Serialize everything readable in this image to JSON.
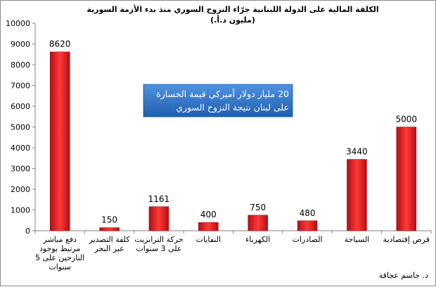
{
  "chart_data": {
    "type": "bar",
    "title": "الكلفة المالية على الدولة اللبنانية جرّاء النزوح السوري منذ بدء الأزمة السورية",
    "subtitle": "(مليون د.أ.)",
    "categories": [
      [
        "دفع مباشر",
        "مرتبط بوجود",
        "النازحين على 5",
        "سنوات"
      ],
      [
        "كلفة التصدير",
        "عبر البحر"
      ],
      [
        "حركة الترانزيت",
        "على 3 سنوات"
      ],
      [
        "النفايات"
      ],
      [
        "الكهرباء"
      ],
      [
        "الصادرات"
      ],
      [
        "السياحة"
      ],
      [
        "فرص إقتصادية"
      ]
    ],
    "values": [
      8620,
      150,
      1161,
      400,
      750,
      480,
      3440,
      5000
    ],
    "data_labels": [
      "8620",
      "150",
      "1161",
      "400",
      "750",
      "480",
      "3440",
      "5000"
    ],
    "yticks": [
      "0",
      "1000",
      "2000",
      "3000",
      "4000",
      "5000",
      "6000",
      "7000",
      "8000",
      "9000",
      "10000"
    ],
    "ylim": [
      0,
      10000
    ],
    "grid": false,
    "legend": "none",
    "bar_color": "#e8171c",
    "callout": {
      "lines": [
        "20 مليار دولار أميركي قيمة الخسارة",
        "على لبنان نتيجة النزوح السوري"
      ],
      "color": "#2e75c8"
    },
    "author": "د. جاسم عجاقة"
  }
}
